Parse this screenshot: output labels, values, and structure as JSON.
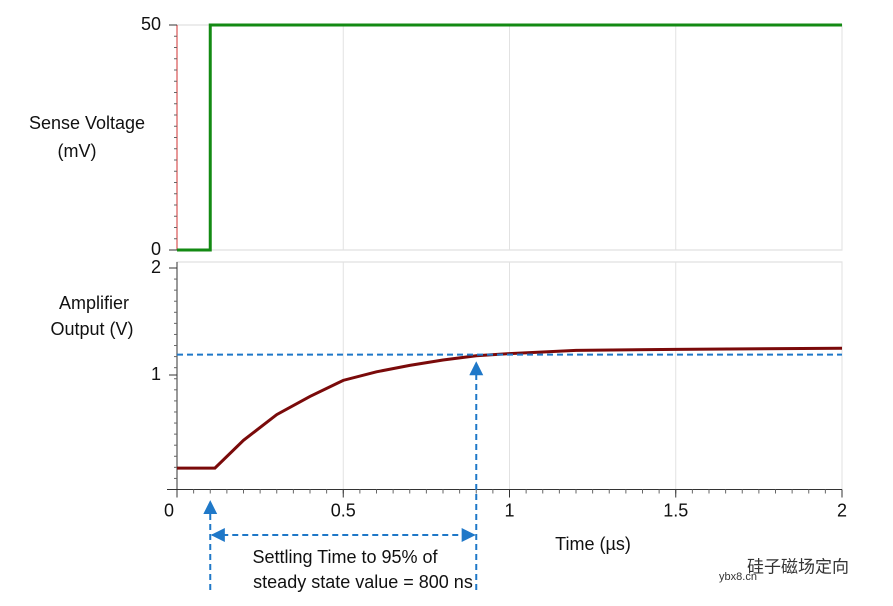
{
  "chart_data": [
    {
      "type": "line",
      "ylabel": [
        "Sense Voltage",
        "(mV)"
      ],
      "xlim": [
        0,
        2
      ],
      "ylim": [
        0,
        50
      ],
      "yticks": [
        0,
        50
      ],
      "grid": true,
      "series": [
        {
          "color": "#138a13",
          "x": [
            0,
            0.1,
            0.1,
            2
          ],
          "values": [
            0,
            0,
            50,
            50
          ]
        }
      ]
    },
    {
      "type": "line",
      "ylabel": [
        "Amplifier",
        "Output (V)"
      ],
      "xlabel": "Time (µs)",
      "xlim": [
        0,
        2
      ],
      "ylim": [
        -0.07,
        2
      ],
      "yticks": [
        1,
        2
      ],
      "xticks": [
        0,
        0.5,
        1,
        1.5,
        2
      ],
      "grid": true,
      "series": [
        {
          "color": "#7a0a0a",
          "x": [
            0,
            0.114,
            0.2,
            0.3,
            0.4,
            0.5,
            0.6,
            0.7,
            0.8,
            0.9,
            1.0,
            1.2,
            1.5,
            2.0
          ],
          "values": [
            0.13,
            0.13,
            0.39,
            0.63,
            0.8,
            0.95,
            1.03,
            1.09,
            1.14,
            1.18,
            1.2,
            1.23,
            1.24,
            1.25
          ]
        }
      ],
      "annotation": {
        "text": [
          "Settling Time to 95% of",
          "steady state value = 800 ns"
        ],
        "level": 1.19,
        "start": 0.1,
        "end": 0.9,
        "color": "#1f78c8"
      }
    }
  ],
  "watermark": {
    "name": "硅子磁场定向",
    "site": "ybx8.cn"
  }
}
